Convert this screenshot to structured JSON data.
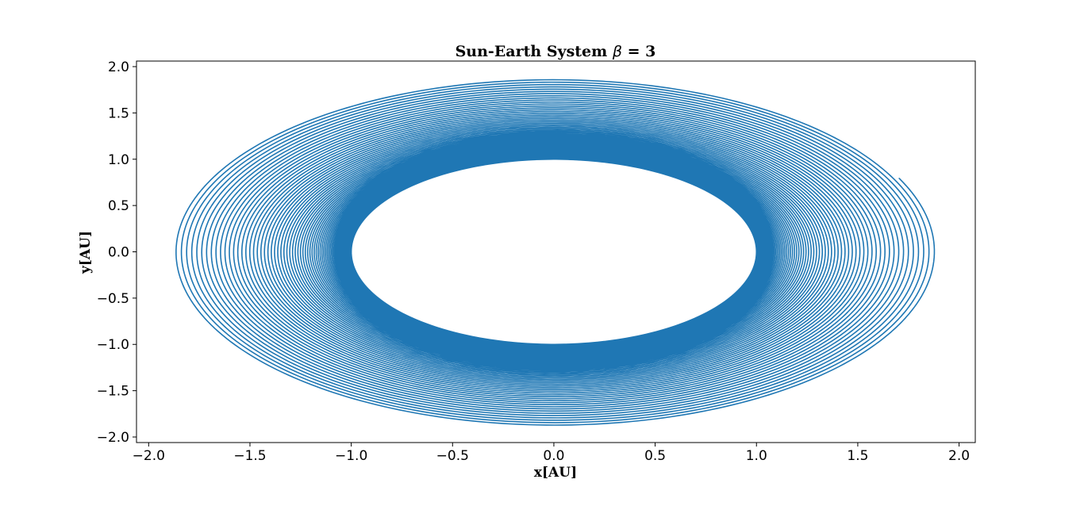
{
  "chart_data": {
    "type": "line",
    "title_text": "Sun-Earth System",
    "title_symbol": "β",
    "title_suffix": "= 3",
    "xlabel": "x[AU]",
    "ylabel": "y[AU]",
    "xlim": [
      -2.06,
      2.08
    ],
    "ylim": [
      -2.06,
      2.06
    ],
    "xticks": [
      -2.0,
      -1.5,
      -1.0,
      -0.5,
      0.0,
      0.5,
      1.0,
      1.5,
      2.0
    ],
    "xtick_labels": [
      "−2.0",
      "−1.5",
      "−1.0",
      "−0.5",
      "0.0",
      "0.5",
      "1.0",
      "1.5",
      "2.0"
    ],
    "yticks": [
      2.0,
      1.5,
      1.0,
      0.5,
      0.0,
      -0.5,
      -1.0,
      -1.5,
      -2.0
    ],
    "ytick_labels": [
      "2.0",
      "1.5",
      "1.0",
      "0.5",
      "0.0",
      "−0.5",
      "−1.0",
      "−1.5",
      "−2.0"
    ],
    "grid": false,
    "series": [
      {
        "color": "#1f77b4",
        "kind": "outward spiral orbit",
        "start_radius": 1.0,
        "end_radius": 1.88,
        "revolutions": 85,
        "end_point": [
          1.72,
          0.8
        ]
      }
    ]
  }
}
